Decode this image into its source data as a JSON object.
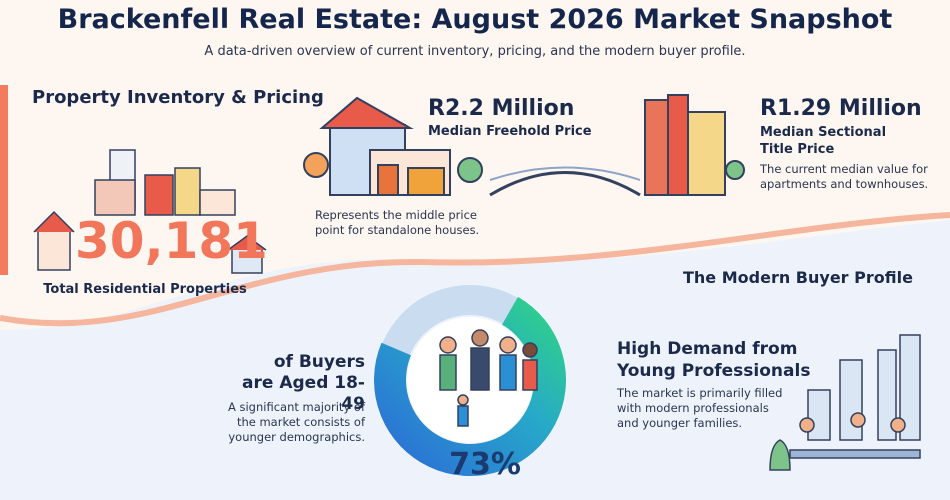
{
  "header": {
    "title": "Brackenfell Real Estate: August 2026 Market Snapshot",
    "subtitle": "A data-driven overview of current inventory, pricing, and the modern buyer profile."
  },
  "inventory": {
    "heading": "Property Inventory & Pricing",
    "total": "30,181",
    "total_label": "Total Residential Properties"
  },
  "freehold": {
    "price": "R2.2 Million",
    "label": "Median Freehold Price",
    "note": "Represents the middle price point for standalone houses."
  },
  "sectional": {
    "price": "R1.29 Million",
    "label": "Median Sectional Title Price",
    "note": "The current median value for apartments and townhouses."
  },
  "buyer": {
    "heading": "The Modern Buyer Profile",
    "age": {
      "value": 73,
      "value_label": "73%",
      "label": "of Buyers are Aged 18-49",
      "note": "A significant majority of the market consists of younger demographics."
    },
    "demand": {
      "heading": "High Demand from Young Professionals",
      "note": "The market is primarily filled with modern professionals and younger families."
    }
  }
}
